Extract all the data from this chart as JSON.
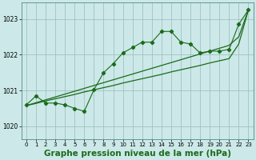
{
  "background_color": "#cce8e8",
  "plot_bg_color": "#cce8e8",
  "grid_color": "#99bbbb",
  "line_color": "#1a6b1a",
  "xlabel": "Graphe pression niveau de la mer (hPa)",
  "xlabel_fontsize": 7.5,
  "ylim": [
    1019.65,
    1023.45
  ],
  "xlim": [
    -0.5,
    23.5
  ],
  "yticks": [
    1020,
    1021,
    1022,
    1023
  ],
  "xticks": [
    0,
    1,
    2,
    3,
    4,
    5,
    6,
    7,
    8,
    9,
    10,
    11,
    12,
    13,
    14,
    15,
    16,
    17,
    18,
    19,
    20,
    21,
    22,
    23
  ],
  "jagged_y": [
    1020.6,
    1020.85,
    1020.65,
    1020.65,
    1020.6,
    1020.5,
    1020.42,
    1021.02,
    1021.5,
    1021.75,
    1022.05,
    1022.2,
    1022.35,
    1022.35,
    1022.65,
    1022.65,
    1022.35,
    1022.3,
    1022.05,
    1022.1,
    1022.1,
    1022.15,
    1022.85,
    1023.25
  ],
  "trend1_y": [
    1020.58,
    1020.64,
    1020.71,
    1020.77,
    1020.83,
    1020.89,
    1020.96,
    1021.02,
    1021.08,
    1021.14,
    1021.21,
    1021.27,
    1021.33,
    1021.39,
    1021.45,
    1021.52,
    1021.58,
    1021.64,
    1021.7,
    1021.77,
    1021.83,
    1021.89,
    1022.3,
    1023.25
  ],
  "trend2_y": [
    1020.58,
    1020.66,
    1020.74,
    1020.82,
    1020.9,
    1020.98,
    1021.06,
    1021.14,
    1021.22,
    1021.3,
    1021.38,
    1021.46,
    1021.54,
    1021.62,
    1021.7,
    1021.78,
    1021.86,
    1021.94,
    1022.02,
    1022.1,
    1022.18,
    1022.26,
    1022.5,
    1023.25
  ]
}
